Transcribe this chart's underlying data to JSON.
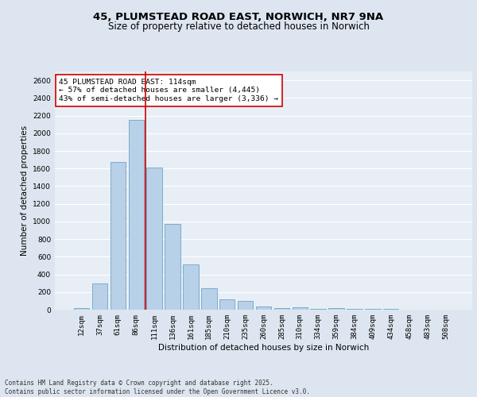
{
  "title": "45, PLUMSTEAD ROAD EAST, NORWICH, NR7 9NA",
  "subtitle": "Size of property relative to detached houses in Norwich",
  "xlabel": "Distribution of detached houses by size in Norwich",
  "ylabel": "Number of detached properties",
  "categories": [
    "12sqm",
    "37sqm",
    "61sqm",
    "86sqm",
    "111sqm",
    "136sqm",
    "161sqm",
    "185sqm",
    "210sqm",
    "235sqm",
    "260sqm",
    "285sqm",
    "310sqm",
    "334sqm",
    "359sqm",
    "384sqm",
    "409sqm",
    "434sqm",
    "458sqm",
    "483sqm",
    "508sqm"
  ],
  "values": [
    20,
    300,
    1670,
    2150,
    1610,
    970,
    510,
    245,
    120,
    100,
    35,
    20,
    30,
    5,
    15,
    5,
    5,
    5,
    0,
    0,
    0
  ],
  "bar_color": "#b8d0e8",
  "bar_edgecolor": "#5a9abf",
  "property_line_index": 4,
  "property_line_color": "#cc0000",
  "annotation_text": "45 PLUMSTEAD ROAD EAST: 114sqm\n← 57% of detached houses are smaller (4,445)\n43% of semi-detached houses are larger (3,336) →",
  "annotation_box_edgecolor": "#cc0000",
  "annotation_box_facecolor": "#ffffff",
  "ylim": [
    0,
    2700
  ],
  "yticks": [
    0,
    200,
    400,
    600,
    800,
    1000,
    1200,
    1400,
    1600,
    1800,
    2000,
    2200,
    2400,
    2600
  ],
  "background_color": "#dde6f0",
  "plot_background_color": "#e8eef5",
  "grid_color": "#ffffff",
  "footer_text": "Contains HM Land Registry data © Crown copyright and database right 2025.\nContains public sector information licensed under the Open Government Licence v3.0.",
  "title_fontsize": 9.5,
  "subtitle_fontsize": 8.5,
  "axis_label_fontsize": 7.5,
  "tick_fontsize": 6.5,
  "annotation_fontsize": 6.8,
  "footer_fontsize": 5.5
}
